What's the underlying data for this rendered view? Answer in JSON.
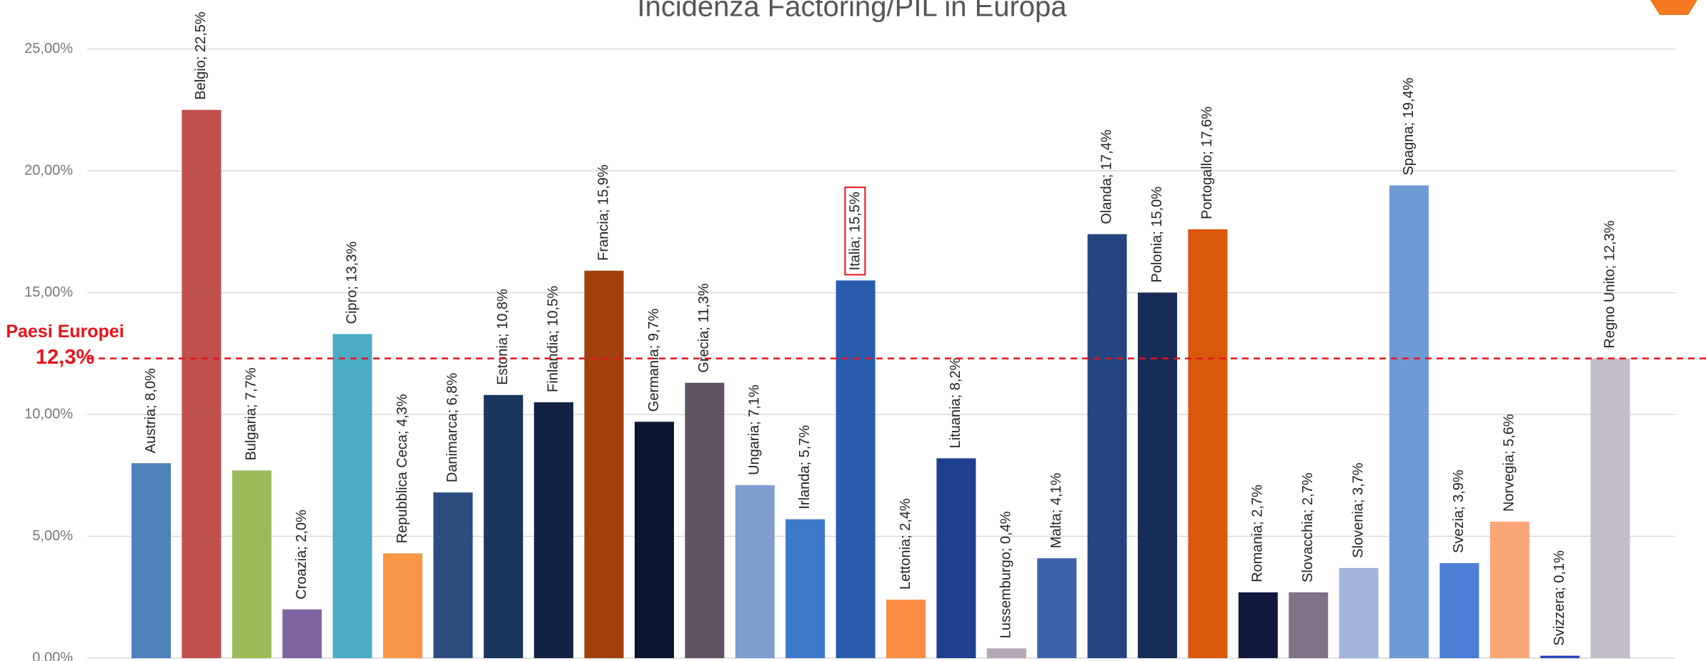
{
  "chart_data": {
    "type": "bar",
    "title": "Incidenza Factoring/PIL in Europa",
    "values": [
      8.0,
      22.5,
      7.7,
      2.0,
      13.3,
      4.3,
      6.8,
      10.8,
      10.5,
      15.9,
      9.7,
      11.3,
      7.1,
      5.7,
      15.5,
      2.4,
      8.2,
      0.4,
      4.1,
      17.4,
      15.0,
      17.6,
      2.7,
      2.7,
      3.7,
      19.4,
      3.9,
      5.6,
      0.1,
      12.3
    ],
    "value_labels": [
      "Austria; 8,0%",
      "Belgio; 22,5%",
      "Bulgaria; 7,7%",
      "Croazia; 2,0%",
      "Cipro; 13,3%",
      "Repubblica Ceca; 4,3%",
      "Danimarca; 6,8%",
      "Estonia; 10,8%",
      "Finlandia; 10,5%",
      "Francia; 15,9%",
      "Germania; 9,7%",
      "Grecia; 11,3%",
      "Ungaria; 7,1%",
      "Irlanda; 5,7%",
      "Italia; 15,5%",
      "Lettonia; 2,4%",
      "Lituania; 8,2%",
      "Lussemburgo; 0,4%",
      "Malta; 4,1%",
      "Olanda; 17,4%",
      "Polonia; 15,0%",
      "Portogallo; 17,6%",
      "Romania; 2,7%",
      "Slovacchia; 2,7%",
      "Slovenia; 3,7%",
      "Spagna; 19,4%",
      "Svezia; 3,9%",
      "Norvegia; 5,6%",
      "Svizzera; 0,1%",
      "Regno Unito; 12,3%"
    ],
    "colors": [
      "#4f81bd",
      "#c0504d",
      "#9bbb59",
      "#8064a2",
      "#4bacc6",
      "#f79646",
      "#2c4d7f",
      "#1b365d",
      "#132344",
      "#a0410e",
      "#0c1630",
      "#5f5262",
      "#7f9fd2",
      "#3f79cb",
      "#2a5cad",
      "#fb8c44",
      "#1f3f8f",
      "#b5a8b5",
      "#3d64ab",
      "#24457f",
      "#172c56",
      "#d9580b",
      "#111a3e",
      "#7f7285",
      "#a0b4dc",
      "#6e9ad6",
      "#4a7fd5",
      "#fba677",
      "#2546b8",
      "#c3bccb"
    ],
    "highlight": 14,
    "ylim": [
      0,
      25
    ],
    "yticks": [
      {
        "value": 0,
        "label": "0,00%"
      },
      {
        "value": 5,
        "label": "5,00%"
      },
      {
        "value": 10,
        "label": "10,00%"
      },
      {
        "value": 15,
        "label": "15,00%"
      },
      {
        "value": 20,
        "label": "20,00%"
      },
      {
        "value": 25,
        "label": "25,00%"
      }
    ],
    "grid": true,
    "reference": {
      "value": 12.3,
      "label": "Paesi Europei",
      "value_label": "12,3%",
      "color": "#e8121b"
    }
  }
}
